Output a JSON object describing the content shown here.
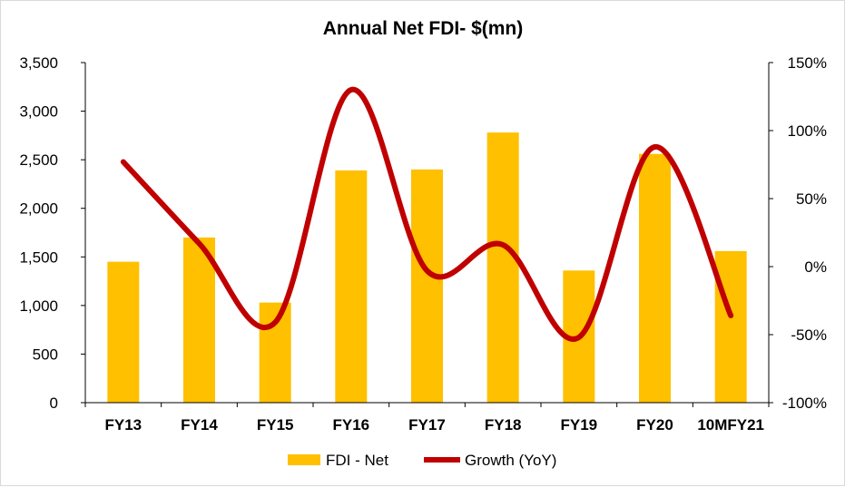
{
  "chart_data": {
    "type": "bar",
    "title": "Annual Net FDI- $(mn)",
    "categories": [
      "FY13",
      "FY14",
      "FY15",
      "FY16",
      "FY17",
      "FY18",
      "FY19",
      "FY20",
      "10MFY21"
    ],
    "series": [
      {
        "name": "FDI - Net",
        "type": "bar",
        "axis": "left",
        "color": "#ffc000",
        "values": [
          1450,
          1700,
          1030,
          2390,
          2400,
          2780,
          1360,
          2560,
          1560
        ]
      },
      {
        "name": "Growth (YoY)",
        "type": "line",
        "axis": "right",
        "smooth": true,
        "color": "#c00000",
        "values": [
          77,
          17,
          -41,
          130,
          -3,
          16,
          -52,
          88,
          -36
        ]
      }
    ],
    "y_left": {
      "min": 0,
      "max": 3500,
      "ticks": [
        0,
        500,
        1000,
        1500,
        2000,
        2500,
        3000,
        3500
      ],
      "tick_labels": [
        "0",
        "500",
        "1,000",
        "1,500",
        "2,000",
        "2,500",
        "3,000",
        "3,500"
      ]
    },
    "y_right": {
      "min": -100,
      "max": 150,
      "ticks": [
        -100,
        -50,
        0,
        50,
        100,
        150
      ],
      "tick_labels": [
        "-100%",
        "-50%",
        "0%",
        "50%",
        "100%",
        "150%"
      ]
    },
    "grid": false,
    "legend_position": "bottom"
  }
}
